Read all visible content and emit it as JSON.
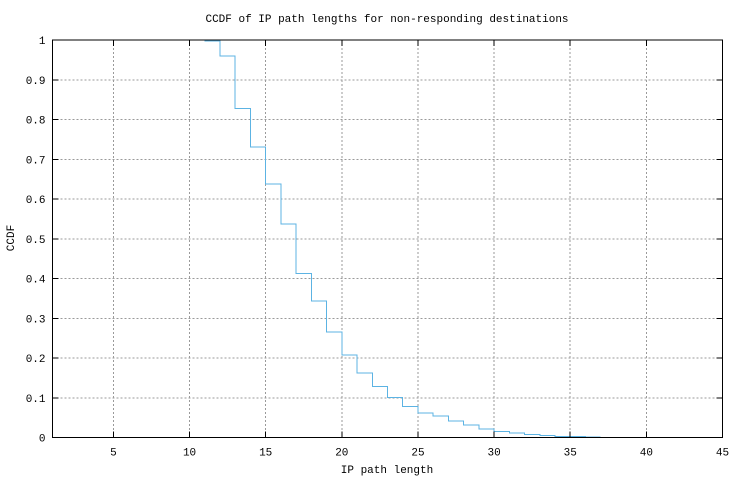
{
  "chart_data": {
    "type": "line",
    "style": "steps",
    "title": "CCDF of IP path lengths for non-responding destinations",
    "xlabel": "IP path length",
    "ylabel": "CCDF",
    "xlim": [
      1,
      45
    ],
    "ylim": [
      0,
      1
    ],
    "xticks": [
      5,
      10,
      15,
      20,
      25,
      30,
      35,
      40,
      45
    ],
    "yticks": [
      0,
      0.1,
      0.2,
      0.3,
      0.4,
      0.5,
      0.6,
      0.7,
      0.8,
      0.9,
      1
    ],
    "ytick_labels": [
      "0",
      "0.1",
      "0.2",
      "0.3",
      "0.4",
      "0.5",
      "0.6",
      "0.7",
      "0.8",
      "0.9",
      "1"
    ],
    "grid": true,
    "legend": "none",
    "colors": {
      "line": "#5cb3e3",
      "grid": "#9a9a9a",
      "axis": "#000000",
      "background": "#ffffff"
    },
    "series": [
      {
        "name": "ccdf-of-ip-path-lengths",
        "step_start": [
          11,
          1.0
        ],
        "step_end_x": 37,
        "points": [
          [
            11,
            0.997
          ],
          [
            12,
            0.96
          ],
          [
            13,
            0.828
          ],
          [
            14,
            0.731
          ],
          [
            15,
            0.638
          ],
          [
            16,
            0.537
          ],
          [
            17,
            0.413
          ],
          [
            18,
            0.343
          ],
          [
            19,
            0.265
          ],
          [
            20,
            0.207
          ],
          [
            21,
            0.162
          ],
          [
            22,
            0.128
          ],
          [
            23,
            0.101
          ],
          [
            24,
            0.078
          ],
          [
            25,
            0.062
          ],
          [
            26,
            0.054
          ],
          [
            27,
            0.042
          ],
          [
            28,
            0.031
          ],
          [
            29,
            0.022
          ],
          [
            30,
            0.015
          ],
          [
            31,
            0.011
          ],
          [
            32,
            0.008
          ],
          [
            33,
            0.005
          ],
          [
            34,
            0.003
          ],
          [
            35,
            0.002
          ],
          [
            36,
            0.001
          ]
        ]
      }
    ]
  }
}
